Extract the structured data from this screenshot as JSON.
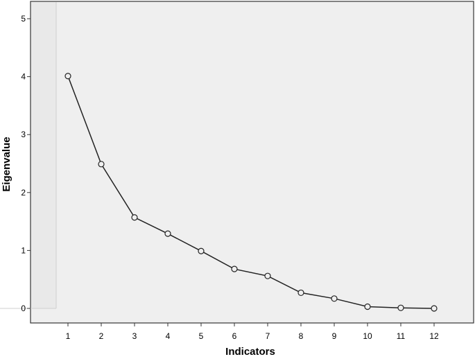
{
  "chart_data": {
    "type": "line",
    "xlabel": "Indicators",
    "ylabel": "Eigenvalue",
    "x": [
      1,
      2,
      3,
      4,
      5,
      6,
      7,
      8,
      9,
      10,
      11,
      12
    ],
    "series": [
      {
        "values": [
          4.01,
          2.49,
          1.57,
          1.29,
          0.99,
          0.68,
          0.56,
          0.27,
          0.17,
          0.03,
          0.01,
          0.0
        ]
      }
    ],
    "xticks": [
      "1",
      "2",
      "3",
      "4",
      "5",
      "6",
      "7",
      "8",
      "9",
      "10",
      "11",
      "12"
    ],
    "yticks": [
      "0",
      "1",
      "2",
      "3",
      "4",
      "5"
    ],
    "xlim": [
      0,
      13
    ],
    "ylim": [
      -0.2,
      5.3
    ],
    "grid": false,
    "colors": {
      "plot_background": "#efefef",
      "inner_panel": "#e9e9e9",
      "line": "#222222",
      "marker_fill": "#efefef"
    }
  }
}
